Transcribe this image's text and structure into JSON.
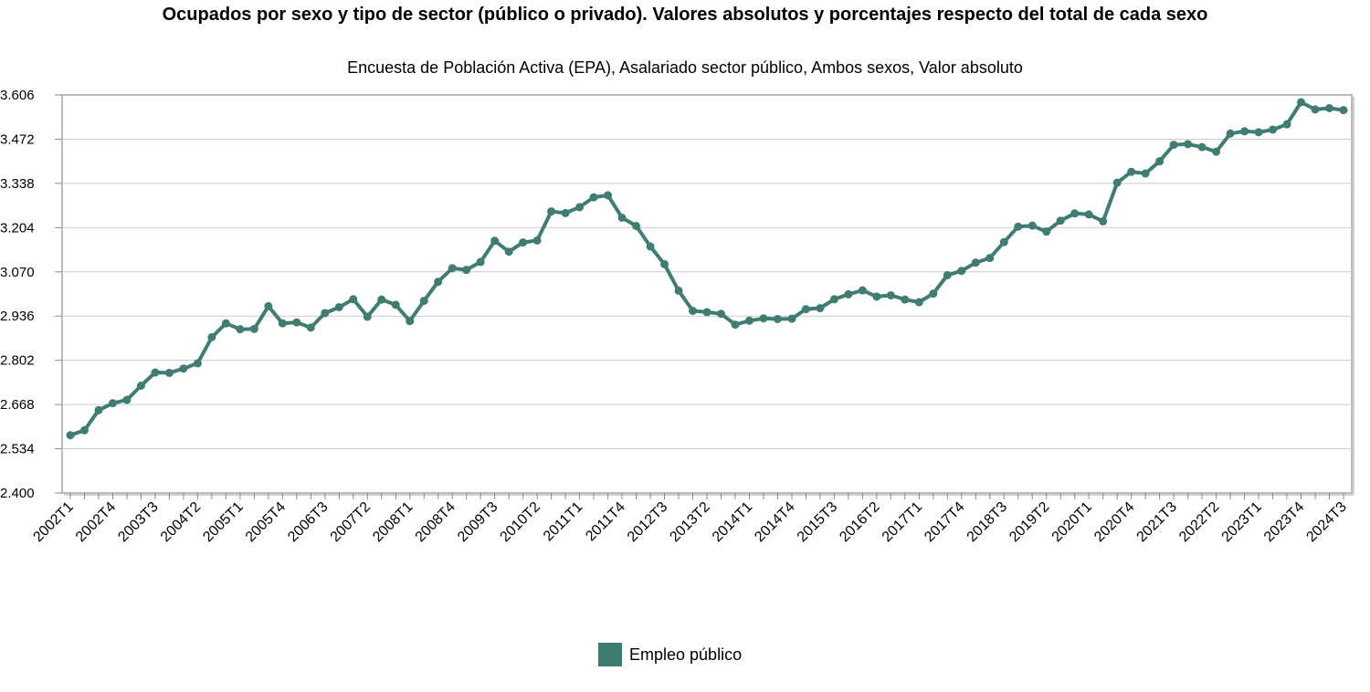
{
  "title": "Ocupados por sexo y tipo de sector (público o privado). Valores absolutos y porcentajes respecto del total de cada sexo",
  "subtitle": "Encuesta de Población Activa (EPA), Asalariado sector público, Ambos sexos, Valor absoluto",
  "colors": {
    "series": "#3f7c72",
    "grid": "#cccccc",
    "axis": "#888888",
    "frame": "#a6a6a6"
  },
  "chart_data": {
    "type": "line",
    "title": "Ocupados por sexo y tipo de sector (público o privado). Valores absolutos y porcentajes respecto del total de cada sexo",
    "subtitle": "Encuesta de Población Activa (EPA), Asalariado sector público, Ambos sexos, Valor absoluto",
    "ylim": [
      2400,
      3606
    ],
    "yticks": [
      "3.606",
      "3.472",
      "3.338",
      "3.204",
      "3.070",
      "2.936",
      "2.802",
      "2.668",
      "2.534",
      "2.400"
    ],
    "xtick_labels": [
      "2002T1",
      "2002T4",
      "2003T3",
      "2004T2",
      "2005T1",
      "2005T4",
      "2006T3",
      "2007T2",
      "2008T1",
      "2008T4",
      "2009T3",
      "2010T2",
      "2011T1",
      "2011T4",
      "2012T3",
      "2013T2",
      "2014T1",
      "2014T4",
      "2015T3",
      "2016T2",
      "2017T1",
      "2017T4",
      "2018T3",
      "2019T2",
      "2020T1",
      "2020T4",
      "2021T3",
      "2022T2",
      "2023T1",
      "2023T4",
      "2024T3"
    ],
    "grid": true,
    "legend": "bottom-center",
    "categories": [
      "2002T1",
      "2002T2",
      "2002T3",
      "2002T4",
      "2003T1",
      "2003T2",
      "2003T3",
      "2003T4",
      "2004T1",
      "2004T2",
      "2004T3",
      "2004T4",
      "2005T1",
      "2005T2",
      "2005T3",
      "2005T4",
      "2006T1",
      "2006T2",
      "2006T3",
      "2006T4",
      "2007T1",
      "2007T2",
      "2007T3",
      "2007T4",
      "2008T1",
      "2008T2",
      "2008T3",
      "2008T4",
      "2009T1",
      "2009T2",
      "2009T3",
      "2009T4",
      "2010T1",
      "2010T2",
      "2010T3",
      "2010T4",
      "2011T1",
      "2011T2",
      "2011T3",
      "2011T4",
      "2012T1",
      "2012T2",
      "2012T3",
      "2012T4",
      "2013T1",
      "2013T2",
      "2013T3",
      "2013T4",
      "2014T1",
      "2014T2",
      "2014T3",
      "2014T4",
      "2015T1",
      "2015T2",
      "2015T3",
      "2015T4",
      "2016T1",
      "2016T2",
      "2016T3",
      "2016T4",
      "2017T1",
      "2017T2",
      "2017T3",
      "2017T4",
      "2018T1",
      "2018T2",
      "2018T3",
      "2018T4",
      "2019T1",
      "2019T2",
      "2019T3",
      "2019T4",
      "2020T1",
      "2020T2",
      "2020T3",
      "2020T4",
      "2021T1",
      "2021T2",
      "2021T3",
      "2021T4",
      "2022T1",
      "2022T2",
      "2022T3",
      "2022T4",
      "2023T1",
      "2023T2",
      "2023T3",
      "2023T4",
      "2024T1",
      "2024T2",
      "2024T3"
    ],
    "series": [
      {
        "name": "Empleo público",
        "values": [
          2575,
          2590,
          2651,
          2672,
          2682,
          2725,
          2765,
          2764,
          2777,
          2793,
          2872,
          2914,
          2896,
          2897,
          2966,
          2914,
          2917,
          2901,
          2945,
          2963,
          2987,
          2934,
          2986,
          2970,
          2921,
          2982,
          3040,
          3081,
          3076,
          3100,
          3164,
          3131,
          3159,
          3165,
          3253,
          3248,
          3266,
          3296,
          3302,
          3234,
          3209,
          3147,
          3093,
          3013,
          2952,
          2948,
          2943,
          2910,
          2922,
          2929,
          2927,
          2928,
          2957,
          2960,
          2987,
          3002,
          3014,
          2995,
          2999,
          2986,
          2978,
          3004,
          3060,
          3073,
          3098,
          3112,
          3160,
          3207,
          3210,
          3192,
          3225,
          3247,
          3244,
          3223,
          3340,
          3373,
          3368,
          3405,
          3455,
          3457,
          3448,
          3434,
          3489,
          3496,
          3493,
          3501,
          3517,
          3584,
          3562,
          3566,
          3560
        ]
      }
    ]
  }
}
